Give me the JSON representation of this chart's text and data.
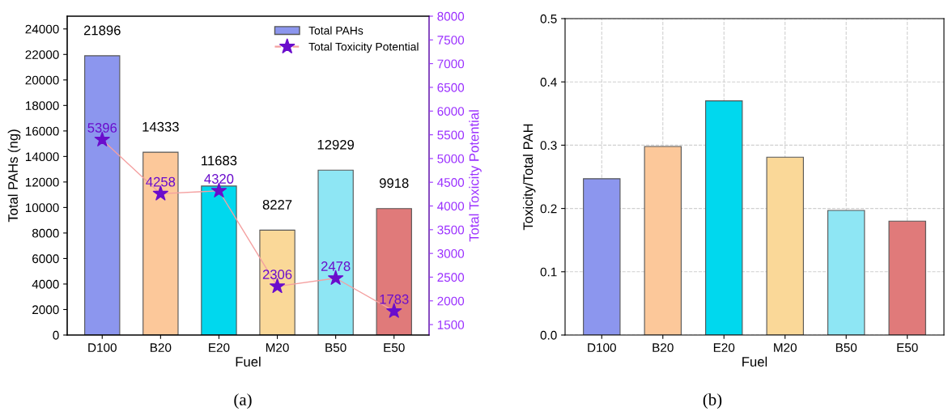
{
  "chart_data": [
    {
      "type": "bar",
      "xlabel": "Fuel",
      "ylabel": "Total PAHs (ng)",
      "y2label": "Total Toxicity Potential",
      "categories": [
        "D100",
        "B20",
        "E20",
        "M20",
        "B50",
        "E50"
      ],
      "series": [
        {
          "name": "Total PAHs",
          "type": "bar",
          "colors": [
            "#8c96ee",
            "#fcc89a",
            "#00d8ee",
            "#fad898",
            "#8ee6f4",
            "#e07a7a"
          ],
          "values": [
            21896,
            14333,
            11683,
            8227,
            12929,
            9918
          ]
        },
        {
          "name": "Total Toxicity Potential",
          "type": "line",
          "axis": "y2",
          "color": "#f4a0a0",
          "colors": [
            "#6a0dcc",
            "#6a0dcc",
            "#6a0dcc",
            "#6a0dcc",
            "#6a0dcc",
            "#6a0dcc"
          ],
          "marker": "star",
          "values": [
            5396,
            4258,
            4320,
            2306,
            2478,
            1783
          ]
        }
      ],
      "data_labels": true,
      "ylim": [
        0,
        25000
      ],
      "yticks": [
        0,
        2000,
        4000,
        6000,
        8000,
        10000,
        12000,
        14000,
        16000,
        18000,
        20000,
        22000,
        24000
      ],
      "y2lim": [
        1280,
        8000
      ],
      "y2ticks": [
        1500,
        2000,
        2500,
        3000,
        3500,
        4000,
        4500,
        5000,
        5500,
        6000,
        6500,
        7000,
        7500,
        8000
      ],
      "legend": "top right",
      "grid": false,
      "annotations": [
        "(a)"
      ]
    },
    {
      "type": "bar",
      "xlabel": "Fuel",
      "ylabel": "Toxicity/Total PAH",
      "categories": [
        "D100",
        "B20",
        "E20",
        "M20",
        "B50",
        "E50"
      ],
      "colors": [
        "#8c96ee",
        "#fcc89a",
        "#00d8ee",
        "#fad898",
        "#8ee6f4",
        "#e07a7a"
      ],
      "values": [
        0.247,
        0.298,
        0.37,
        0.281,
        0.197,
        0.18
      ],
      "ylim": [
        0,
        0.5
      ],
      "yticks": [
        {
          "value": 0,
          "label": "0.0"
        },
        0.1,
        0.2,
        0.3,
        0.4,
        0.5
      ],
      "grid": true,
      "annotations": [
        "(b)"
      ]
    }
  ]
}
